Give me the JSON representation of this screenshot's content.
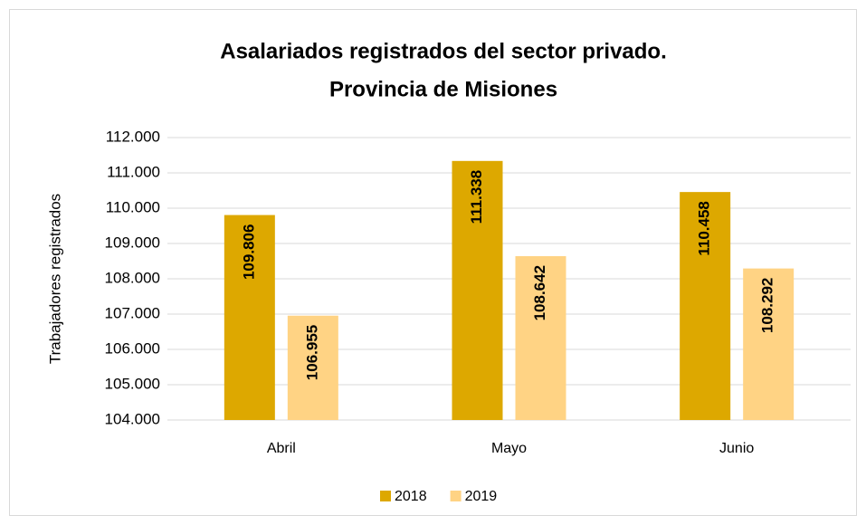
{
  "chart_data": {
    "type": "bar",
    "title_lines": [
      "Asalariados registrados del sector privado.",
      "Provincia de Misiones"
    ],
    "ylabel": "Trabajadores registrados",
    "categories": [
      "Abril",
      "Mayo",
      "Junio"
    ],
    "series": [
      {
        "name": "2018",
        "color": "#DDA800",
        "values": [
          109806,
          111338,
          110458
        ],
        "value_labels": [
          "109.806",
          "111.338",
          "110.458"
        ]
      },
      {
        "name": "2019",
        "color": "#FFD384",
        "values": [
          106955,
          108642,
          108292
        ],
        "value_labels": [
          "106.955",
          "108.642",
          "108.292"
        ]
      }
    ],
    "ylim": [
      104000,
      112000
    ],
    "yticks": [
      {
        "value": 104000,
        "label": "104.000"
      },
      {
        "value": 105000,
        "label": "105.000"
      },
      {
        "value": 106000,
        "label": "106.000"
      },
      {
        "value": 107000,
        "label": "107.000"
      },
      {
        "value": 108000,
        "label": "108.000"
      },
      {
        "value": 109000,
        "label": "109.000"
      },
      {
        "value": 110000,
        "label": "110.000"
      },
      {
        "value": 111000,
        "label": "111.000"
      },
      {
        "value": 112000,
        "label": "112.000"
      }
    ],
    "grid": true,
    "legend": "bottom"
  }
}
